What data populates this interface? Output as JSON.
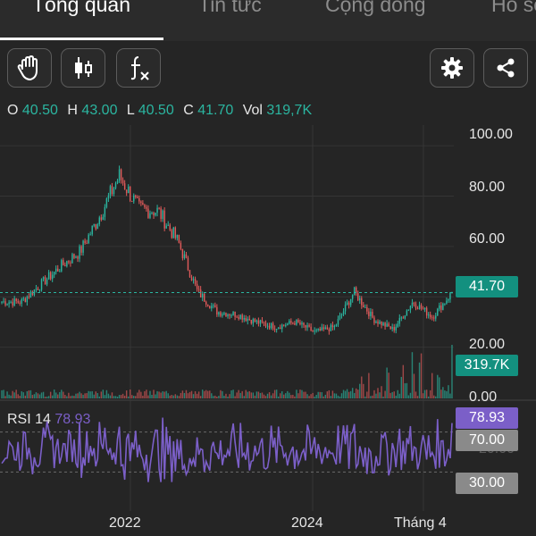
{
  "tabs": [
    {
      "label": "Tổng quan",
      "active": true
    },
    {
      "label": "Tin tức",
      "active": false
    },
    {
      "label": "Cộng đồng",
      "active": false
    },
    {
      "label": "Hồ sơ",
      "active": false
    }
  ],
  "toolbar": {
    "left_icons": [
      "hand-pan-icon",
      "candlestick-icon",
      "function-icon"
    ],
    "right_icons": [
      "gear-icon",
      "share-icon"
    ]
  },
  "ohlc": {
    "o_label": "O",
    "o_value": "40.50",
    "h_label": "H",
    "h_value": "43.00",
    "l_label": "L",
    "l_value": "40.50",
    "c_label": "C",
    "c_value": "41.70",
    "vol_label": "Vol",
    "vol_value": "319,7K"
  },
  "price_axis": [
    "100.00",
    "80.00",
    "60.00",
    "20.00",
    "0.00"
  ],
  "last_price_tag": "41.70",
  "last_volume_tag": "319.7K",
  "rsi": {
    "label": "RSI 14",
    "value": "78.93",
    "overbought": "70.00",
    "oversold": "30.00",
    "faint_axis": "20.00"
  },
  "x_axis": [
    "2022",
    "2024",
    "Tháng 4"
  ],
  "colors": {
    "background": "#252525",
    "up": "#2bb5a0",
    "down": "#e05a5a",
    "rsi": "#7b5fc8",
    "label_gray": "#8a8a8a"
  },
  "chart_data": {
    "type": "line",
    "price_series": {
      "name": "",
      "x": [
        "2020-07",
        "2020-10",
        "2021-01",
        "2021-04",
        "2021-07",
        "2021-10",
        "2021-11",
        "2022-01",
        "2022-03",
        "2022-06",
        "2022-08",
        "2022-10",
        "2023-01",
        "2023-04",
        "2023-07",
        "2023-10",
        "2024-01",
        "2024-03",
        "2024-05",
        "2024-08",
        "2024-11",
        "2025-01",
        "2025-02",
        "2025-04"
      ],
      "values": [
        38,
        38,
        45,
        52,
        58,
        72,
        88,
        75,
        74,
        62,
        42,
        34,
        33,
        30,
        28,
        30,
        26,
        28,
        42,
        31,
        27,
        38,
        32,
        41.7
      ]
    },
    "rsi_series": {
      "name": "RSI 14",
      "last": 78.93,
      "overbought": 70,
      "oversold": 30
    },
    "ylim": [
      0,
      105
    ],
    "last_close": 41.7,
    "last_volume": "319.7K"
  }
}
